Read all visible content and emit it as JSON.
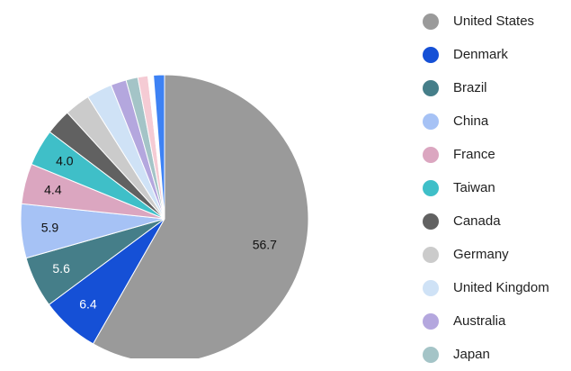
{
  "chart_data": {
    "type": "pie",
    "title": "",
    "legend_position": "right",
    "slices": [
      {
        "label": "United States",
        "value": 56.7,
        "color": "#9a9a9a",
        "data_label": "56.7"
      },
      {
        "label": "Denmark",
        "value": 6.4,
        "color": "#1550d6",
        "data_label": "6.4"
      },
      {
        "label": "Brazil",
        "value": 5.6,
        "color": "#457e89",
        "data_label": "5.6"
      },
      {
        "label": "China",
        "value": 5.9,
        "color": "#a6c2f5",
        "data_label": "5.9"
      },
      {
        "label": "France",
        "value": 4.4,
        "color": "#dba6c0",
        "data_label": "4.4"
      },
      {
        "label": "Taiwan",
        "value": 4.0,
        "color": "#3fbfc8",
        "data_label": "4.0"
      },
      {
        "label": "Canada",
        "value": 2.8,
        "color": "#616161",
        "data_label": ""
      },
      {
        "label": "Germany",
        "value": 2.8,
        "color": "#cbcbcb",
        "data_label": ""
      },
      {
        "label": "United Kingdom",
        "value": 2.8,
        "color": "#cfe2f6",
        "data_label": ""
      },
      {
        "label": "Australia",
        "value": 1.7,
        "color": "#b4a7de",
        "data_label": ""
      },
      {
        "label": "Japan",
        "value": 1.3,
        "color": "#a4c4c7",
        "data_label": ""
      },
      {
        "label": "",
        "value": 1.1,
        "color": "#f5cbd4",
        "data_label": ""
      },
      {
        "label": "",
        "value": 0.6,
        "color": "#ffffff",
        "data_label": ""
      },
      {
        "label": "",
        "value": 1.2,
        "color": "#3e82f4",
        "data_label": ""
      }
    ]
  }
}
